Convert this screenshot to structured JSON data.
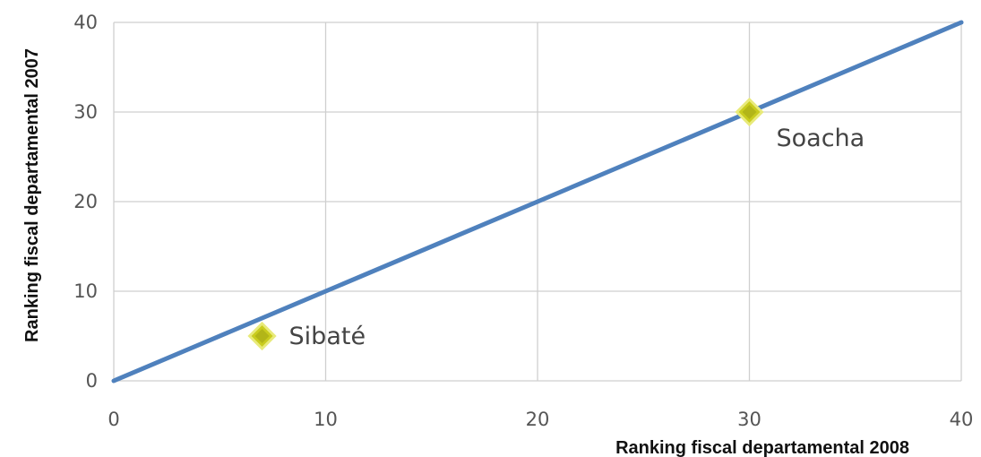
{
  "chart_data": {
    "type": "scatter",
    "xlabel": "Ranking fiscal departamental 2008",
    "ylabel": "Ranking fiscal  departamental 2007",
    "xlim": [
      0,
      40
    ],
    "ylim": [
      0,
      40
    ],
    "x_ticks": [
      "0",
      "10",
      "20",
      "30",
      "40"
    ],
    "y_ticks": [
      "0",
      "10",
      "20",
      "30",
      "40"
    ],
    "grid": true,
    "series": [
      {
        "type": "line",
        "x": [
          0,
          40
        ],
        "y": [
          0,
          40
        ],
        "color": "#4f81bd"
      },
      {
        "type": "scatter",
        "marker": "diamond",
        "color": "#c9cc1e",
        "points": [
          {
            "x": 7,
            "y": 5,
            "label": "Sibaté"
          },
          {
            "x": 30,
            "y": 30,
            "label": "Soacha"
          }
        ]
      }
    ]
  }
}
